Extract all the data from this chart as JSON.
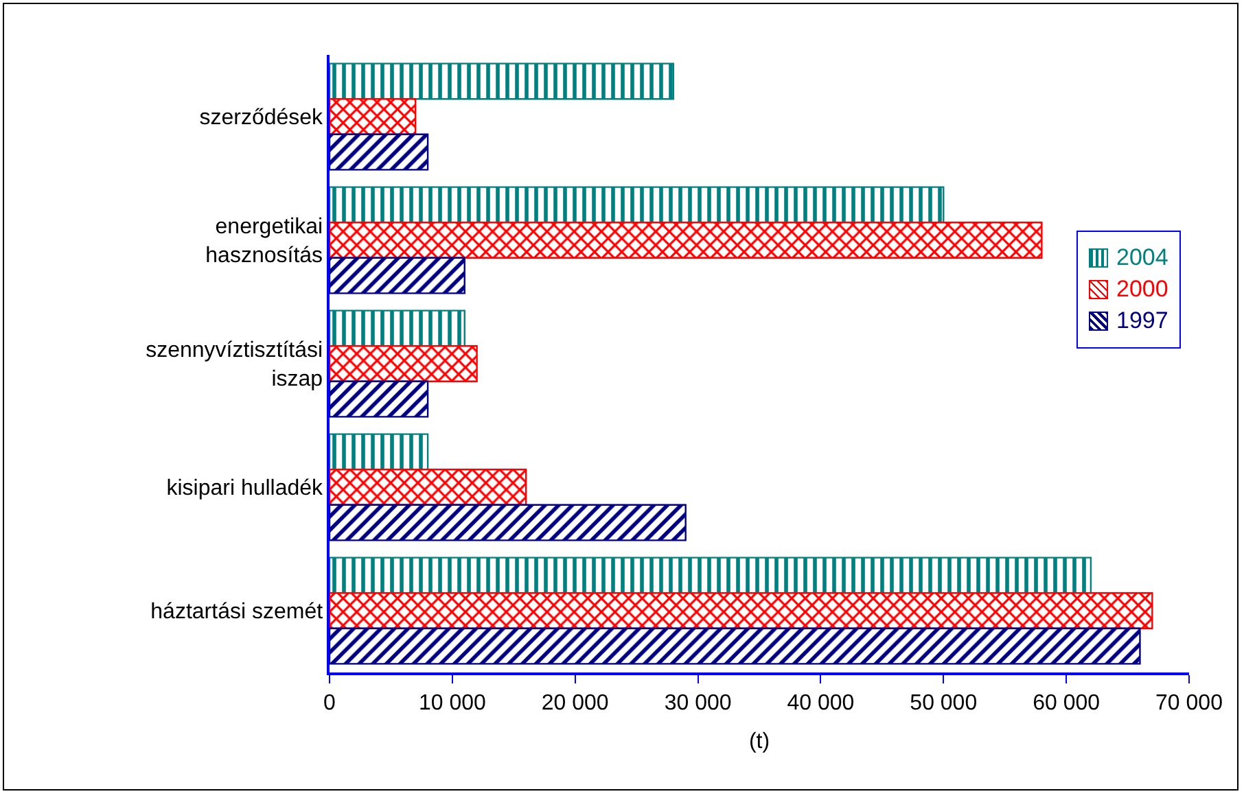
{
  "chart_data": {
    "type": "bar",
    "orientation": "horizontal",
    "xlabel": "(t)",
    "categories": [
      "szerződések",
      "energetikai hasznosítás",
      "szennyvíztisztítási iszap",
      "kisipari hulladék",
      "háztartási szemét"
    ],
    "series": [
      {
        "name": "2004",
        "color": "#008080",
        "values": [
          28000,
          50000,
          11000,
          8000,
          62000
        ]
      },
      {
        "name": "2000",
        "color": "#ff0000",
        "values": [
          7000,
          58000,
          12000,
          16000,
          67000
        ]
      },
      {
        "name": "1997",
        "color": "#000080",
        "values": [
          8000,
          11000,
          8000,
          29000,
          66000
        ]
      }
    ],
    "xlim": [
      0,
      70000
    ],
    "xticks": [
      0,
      {
        "value": 10000,
        "label": "10 000"
      },
      {
        "value": 20000,
        "label": "20 000"
      },
      {
        "value": 30000,
        "label": "30 000"
      },
      {
        "value": 40000,
        "label": "40 000"
      },
      {
        "value": 50000,
        "label": "50 000"
      },
      {
        "value": 60000,
        "label": "60 000"
      },
      {
        "value": 70000,
        "label": "70 000"
      }
    ],
    "grid": false,
    "legend": "right"
  }
}
